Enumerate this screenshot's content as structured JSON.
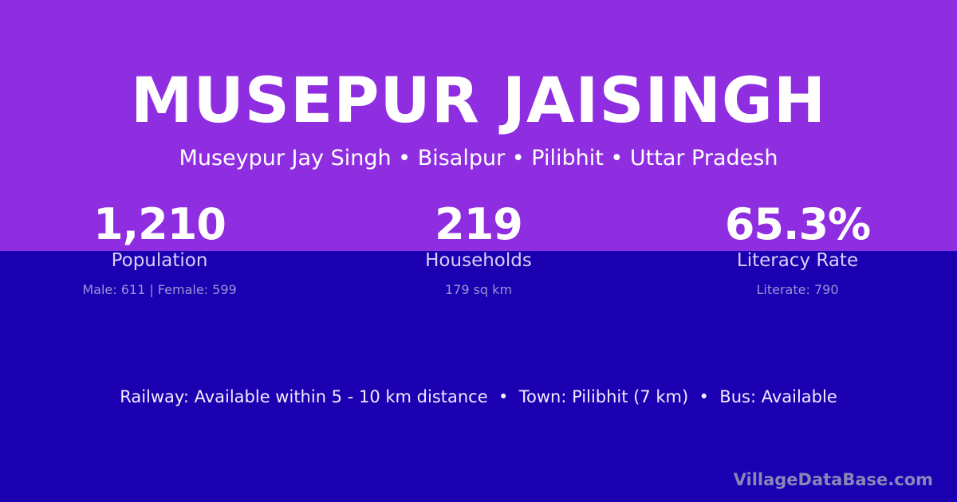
{
  "title": "MUSEPUR JAISINGH",
  "subtitle": "Museypur Jay Singh • Bisalpur • Pilibhit • Uttar Pradesh",
  "stats": [
    {
      "value": "1,210",
      "label": "Population",
      "detail": "Male: 611 | Female: 599"
    },
    {
      "value": "219",
      "label": "Households",
      "detail": "179 sq km"
    },
    {
      "value": "65.3%",
      "label": "Literacy Rate",
      "detail": "Literate: 790"
    }
  ],
  "info": "Railway: Available within 5 - 10 km distance  •  Town: Pilibhit (7 km)  •  Bus: Available",
  "brand": "VillageDataBase.com",
  "colors": {
    "top": "#8f2ee0",
    "bottom": "#1a00b0"
  }
}
